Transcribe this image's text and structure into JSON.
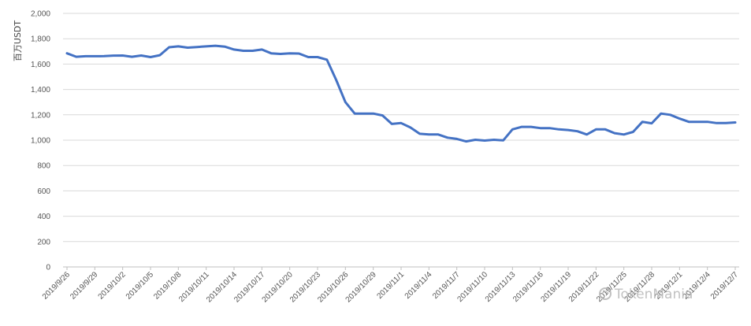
{
  "chart_data": {
    "type": "line",
    "title": "",
    "xlabel": "",
    "ylabel": "百万USDT",
    "ylim": [
      0,
      2000
    ],
    "yticks": [
      0,
      200,
      400,
      600,
      800,
      1000,
      1200,
      1400,
      1600,
      1800,
      2000
    ],
    "yticklabels": [
      "0",
      "200",
      "400",
      "600",
      "800",
      "1,000",
      "1,200",
      "1,400",
      "1,600",
      "1,800",
      "2,000"
    ],
    "xticklabels": [
      "2019/9/26",
      "2019/9/29",
      "2019/10/2",
      "2019/10/5",
      "2019/10/8",
      "2019/10/11",
      "2019/10/14",
      "2019/10/17",
      "2019/10/20",
      "2019/10/23",
      "2019/10/26",
      "2019/10/29",
      "2019/11/1",
      "2019/11/4",
      "2019/11/7",
      "2019/11/10",
      "2019/11/13",
      "2019/11/16",
      "2019/11/19",
      "2019/11/22",
      "2019/11/25",
      "2019/11/28",
      "2019/12/1",
      "2019/12/4",
      "2019/12/7"
    ],
    "grid": true,
    "legend": "none",
    "series": [
      {
        "color": "#4472c4",
        "x": [
          "2019/9/26",
          "2019/9/27",
          "2019/9/28",
          "2019/9/29",
          "2019/9/30",
          "2019/10/1",
          "2019/10/2",
          "2019/10/3",
          "2019/10/4",
          "2019/10/5",
          "2019/10/6",
          "2019/10/7",
          "2019/10/8",
          "2019/10/9",
          "2019/10/10",
          "2019/10/11",
          "2019/10/12",
          "2019/10/13",
          "2019/10/14",
          "2019/10/15",
          "2019/10/16",
          "2019/10/17",
          "2019/10/18",
          "2019/10/19",
          "2019/10/20",
          "2019/10/21",
          "2019/10/22",
          "2019/10/23",
          "2019/10/24",
          "2019/10/25",
          "2019/10/26",
          "2019/10/27",
          "2019/10/28",
          "2019/10/29",
          "2019/10/30",
          "2019/10/31",
          "2019/11/1",
          "2019/11/2",
          "2019/11/3",
          "2019/11/4",
          "2019/11/5",
          "2019/11/6",
          "2019/11/7",
          "2019/11/8",
          "2019/11/9",
          "2019/11/10",
          "2019/11/11",
          "2019/11/12",
          "2019/11/13",
          "2019/11/14",
          "2019/11/15",
          "2019/11/16",
          "2019/11/17",
          "2019/11/18",
          "2019/11/19",
          "2019/11/20",
          "2019/11/21",
          "2019/11/22",
          "2019/11/23",
          "2019/11/24",
          "2019/11/25",
          "2019/11/26",
          "2019/11/27",
          "2019/11/28",
          "2019/11/29",
          "2019/11/30",
          "2019/12/1",
          "2019/12/2",
          "2019/12/3",
          "2019/12/4",
          "2019/12/5",
          "2019/12/6",
          "2019/12/7"
        ],
        "values": [
          1685,
          1658,
          1662,
          1662,
          1663,
          1667,
          1668,
          1658,
          1668,
          1655,
          1670,
          1733,
          1740,
          1730,
          1735,
          1740,
          1745,
          1738,
          1715,
          1705,
          1705,
          1715,
          1685,
          1680,
          1685,
          1683,
          1655,
          1655,
          1635,
          1475,
          1300,
          1210,
          1210,
          1210,
          1195,
          1128,
          1135,
          1100,
          1050,
          1045,
          1045,
          1020,
          1010,
          990,
          1003,
          997,
          1003,
          998,
          1085,
          1105,
          1105,
          1095,
          1095,
          1085,
          1080,
          1070,
          1045,
          1085,
          1085,
          1055,
          1045,
          1065,
          1145,
          1133,
          1210,
          1200,
          1170,
          1145,
          1145,
          1145,
          1135,
          1135,
          1140
        ]
      }
    ]
  },
  "watermark": {
    "text": "TokenMania",
    "icon": "tokenmania-logo-icon"
  }
}
